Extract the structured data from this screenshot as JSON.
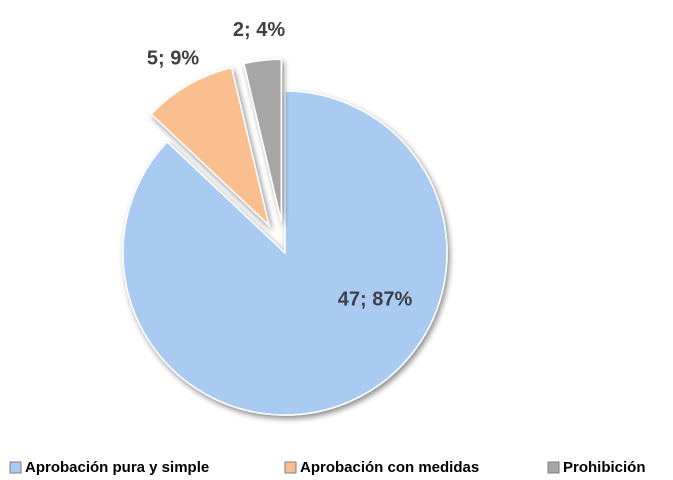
{
  "chart_data": {
    "type": "pie",
    "categories": [
      "Aprobación pura y simple",
      "Aprobación con medidas",
      "Prohibición"
    ],
    "values": [
      47,
      5,
      2
    ],
    "value_labels": [
      "47; 87%",
      "5; 9%",
      "2; 4%"
    ],
    "colors": [
      "#a9cbf2",
      "#f9bf8f",
      "#a6a6a6"
    ],
    "legend": "bottom"
  }
}
